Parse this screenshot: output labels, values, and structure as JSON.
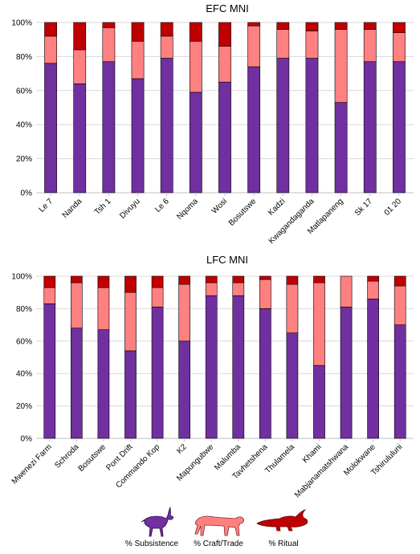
{
  "colors": {
    "subsistence": "#7030a0",
    "craft": "#ff8080",
    "ritual": "#c00000",
    "grid": "#d9d9d9",
    "axis": "#bfbfbf"
  },
  "legend": {
    "items": [
      {
        "key": "subsistence",
        "label": "% Subsistence",
        "icon": "antelope-icon"
      },
      {
        "key": "craft",
        "label": "% Craft/Trade",
        "icon": "leopard-icon"
      },
      {
        "key": "ritual",
        "label": "% Ritual",
        "icon": "crocodile-icon"
      }
    ]
  },
  "chart_data": [
    {
      "type": "bar",
      "stacked": true,
      "title": "EFC MNI",
      "ylim": [
        0,
        100
      ],
      "yticks": [
        "0%",
        "20%",
        "40%",
        "60%",
        "80%",
        "100%"
      ],
      "grid": true,
      "categories": [
        "Le 7",
        "Nanda",
        "Tsh 1",
        "Divuyu",
        "Le 6",
        "Nqoma",
        "Wosi",
        "Bosutswe",
        "Kadzi",
        "Kwagandaganda",
        "Matlapaneng",
        "Sk 17",
        "01 20"
      ],
      "series": [
        {
          "name": "% Subsistence",
          "key": "subsistence",
          "values": [
            76,
            64,
            77,
            67,
            79,
            59,
            65,
            74,
            79,
            79,
            53,
            77,
            77
          ]
        },
        {
          "name": "% Craft/Trade",
          "key": "craft",
          "values": [
            16,
            20,
            20,
            22,
            13,
            30,
            21,
            24,
            17,
            16,
            43,
            19,
            17
          ]
        },
        {
          "name": "% Ritual",
          "key": "ritual",
          "values": [
            8,
            16,
            3,
            11,
            8,
            11,
            14,
            2,
            4,
            5,
            4,
            4,
            6
          ]
        }
      ]
    },
    {
      "type": "bar",
      "stacked": true,
      "title": "LFC MNI",
      "ylim": [
        0,
        100
      ],
      "yticks": [
        "0%",
        "20%",
        "40%",
        "60%",
        "80%",
        "100%"
      ],
      "grid": true,
      "categories": [
        "Mwenezi Farm",
        "Schroda",
        "Bosutswe",
        "Pont Drift",
        "Commando Kop",
        "K2",
        "Mapungubwe",
        "Malumba",
        "Tavhetshena",
        "Thulamela",
        "Khami",
        "Mabjanamatshwana",
        "Molokwane",
        "Tshirululuni"
      ],
      "series": [
        {
          "name": "% Subsistence",
          "key": "subsistence",
          "values": [
            83,
            68,
            67,
            54,
            81,
            60,
            88,
            88,
            80,
            65,
            45,
            81,
            86,
            70
          ]
        },
        {
          "name": "% Craft/Trade",
          "key": "craft",
          "values": [
            10,
            28,
            26,
            36,
            12,
            35,
            8,
            8,
            18,
            30,
            51,
            19,
            11,
            24
          ]
        },
        {
          "name": "% Ritual",
          "key": "ritual",
          "values": [
            7,
            4,
            7,
            10,
            7,
            5,
            4,
            4,
            2,
            5,
            4,
            0,
            3,
            6
          ]
        }
      ]
    }
  ]
}
